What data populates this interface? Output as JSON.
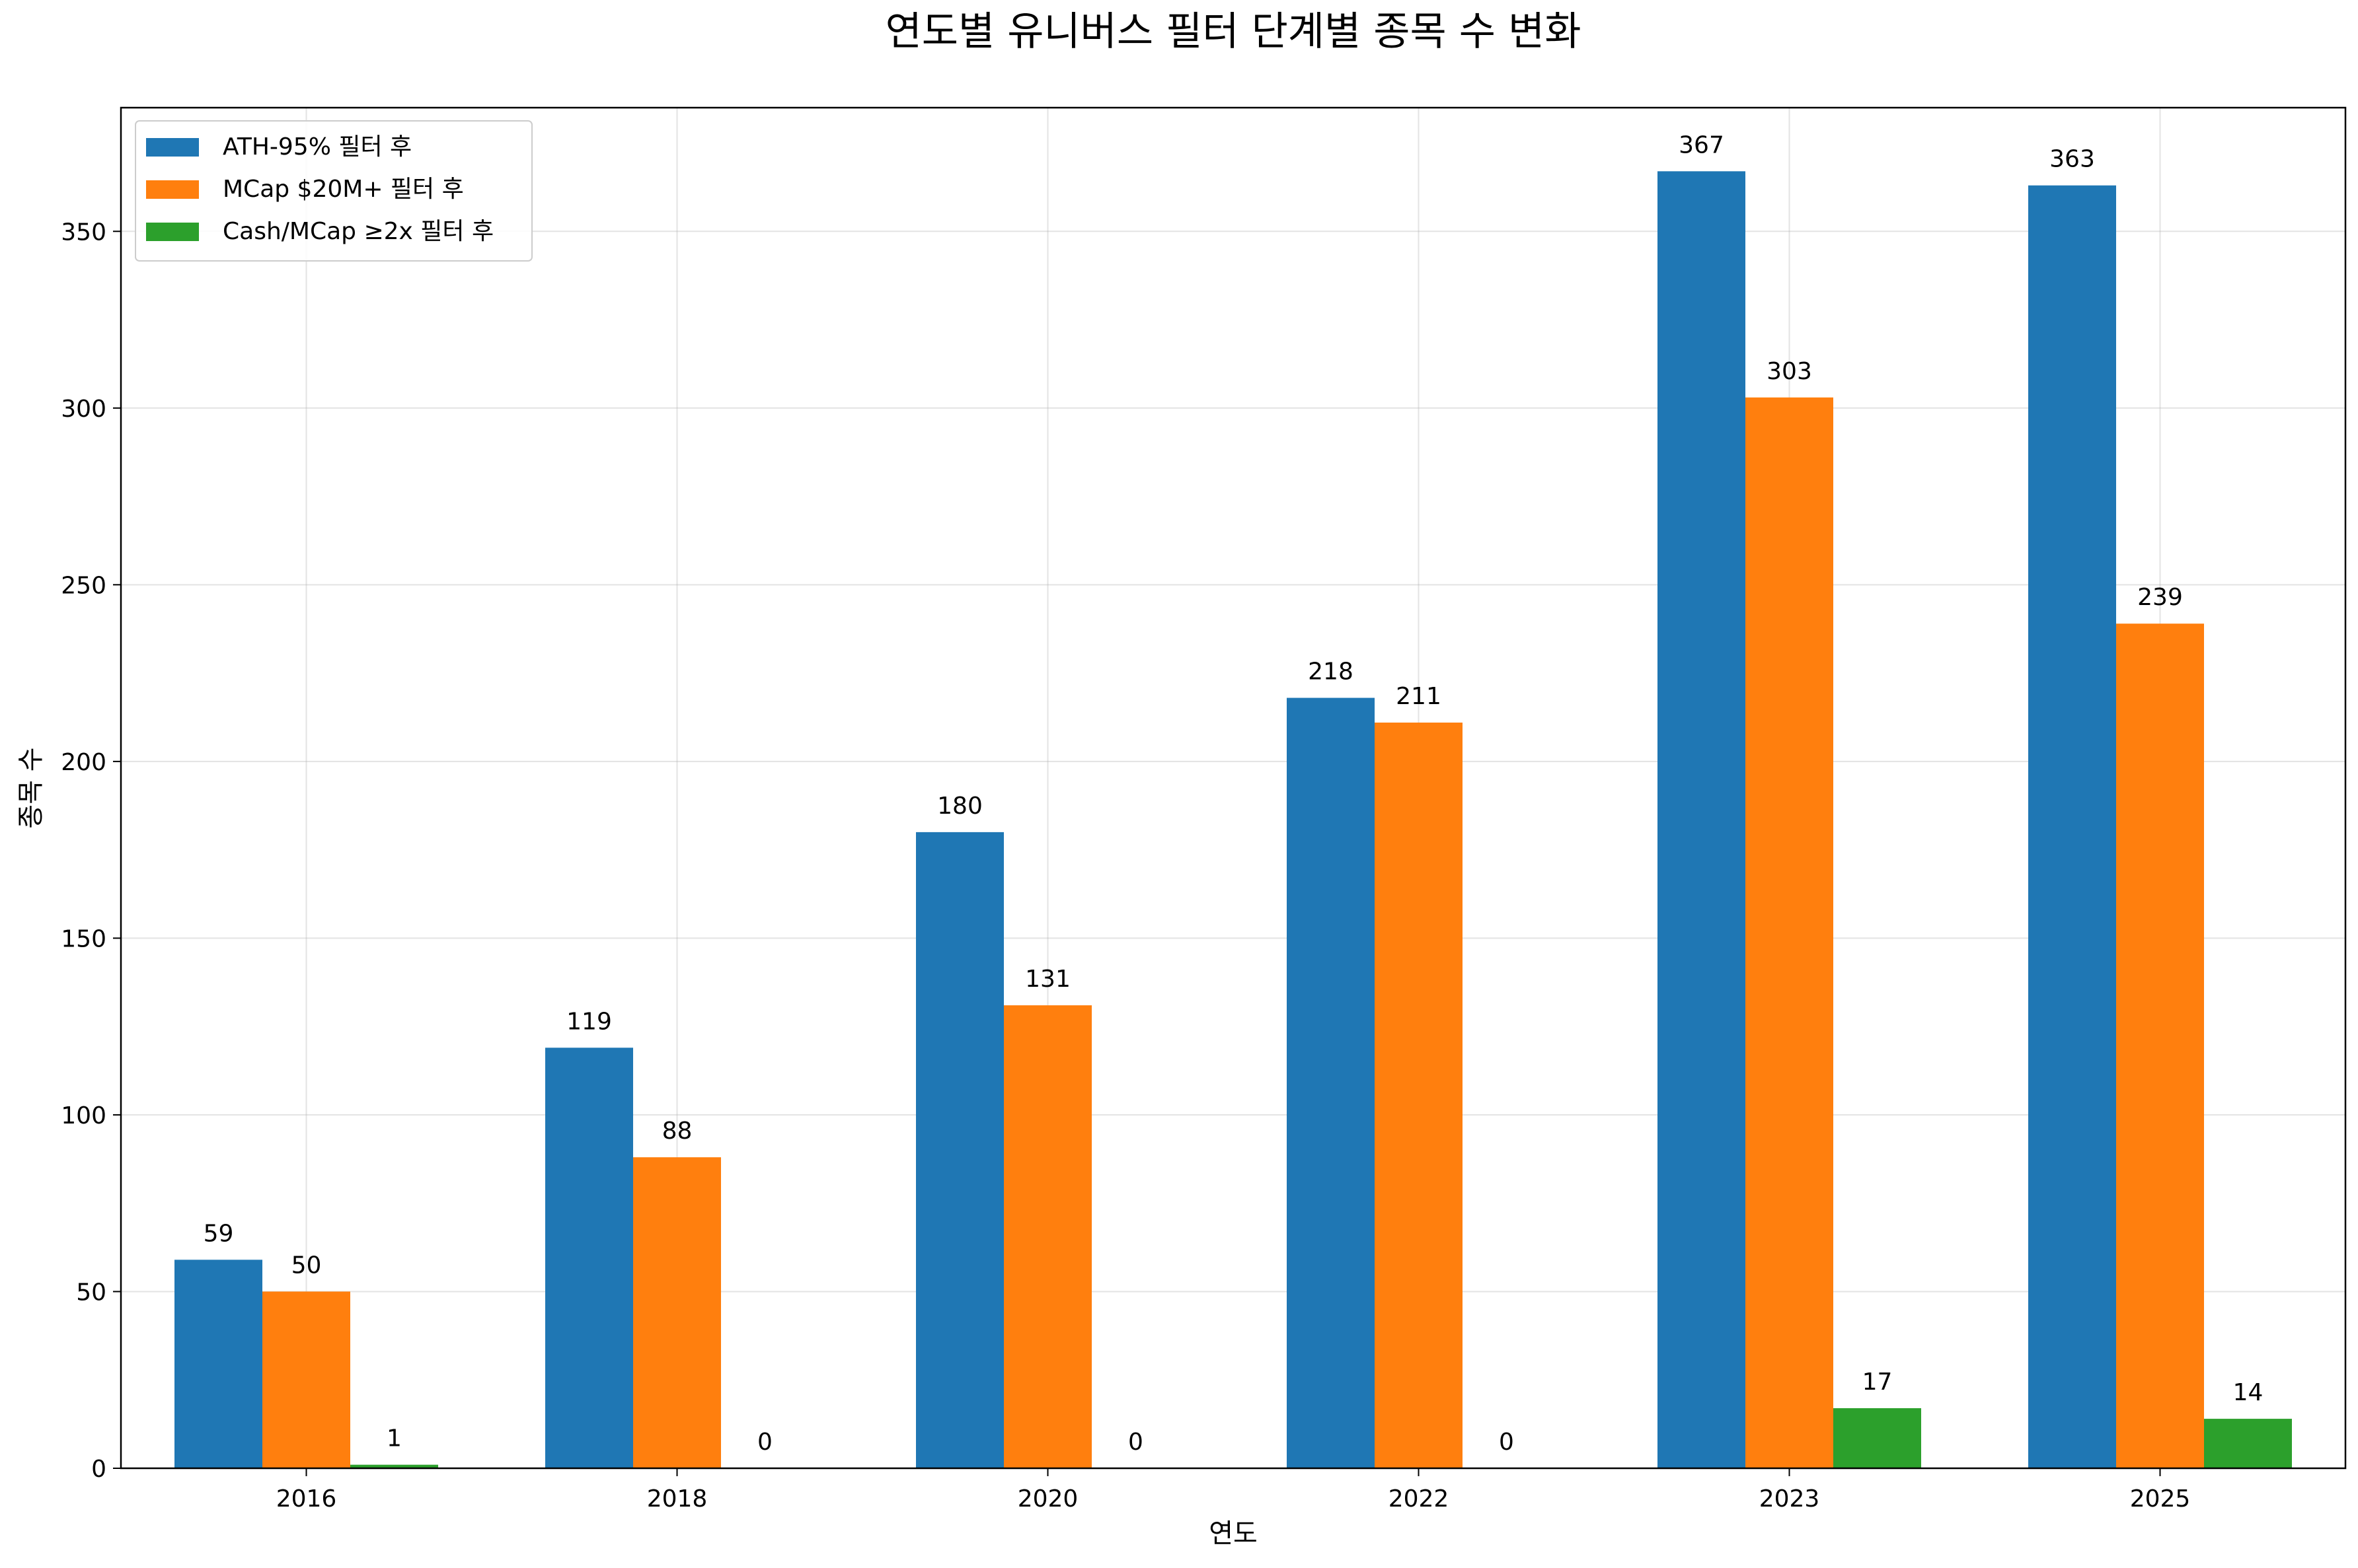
{
  "chart_data": {
    "type": "bar",
    "title": "연도별 유니버스 필터 단계별 종목 수 변화",
    "xlabel": "연도",
    "ylabel": "종목 수",
    "categories": [
      "2016",
      "2018",
      "2020",
      "2022",
      "2023",
      "2025"
    ],
    "series": [
      {
        "name": "ATH-95% 필터 후",
        "color": "#1f77b4",
        "values": [
          59,
          119,
          180,
          218,
          367,
          363
        ]
      },
      {
        "name": "MCap $20M+ 필터 후",
        "color": "#ff7f0e",
        "values": [
          50,
          88,
          131,
          211,
          303,
          239
        ]
      },
      {
        "name": "Cash/MCap ≥2x 필터 후",
        "color": "#2ca02c",
        "values": [
          1,
          0,
          0,
          0,
          17,
          14
        ]
      }
    ],
    "ylim": [
      0,
      385
    ],
    "yticks": [
      0,
      50,
      100,
      150,
      200,
      250,
      300,
      350
    ],
    "grid": true,
    "legend_position": "top-left"
  }
}
